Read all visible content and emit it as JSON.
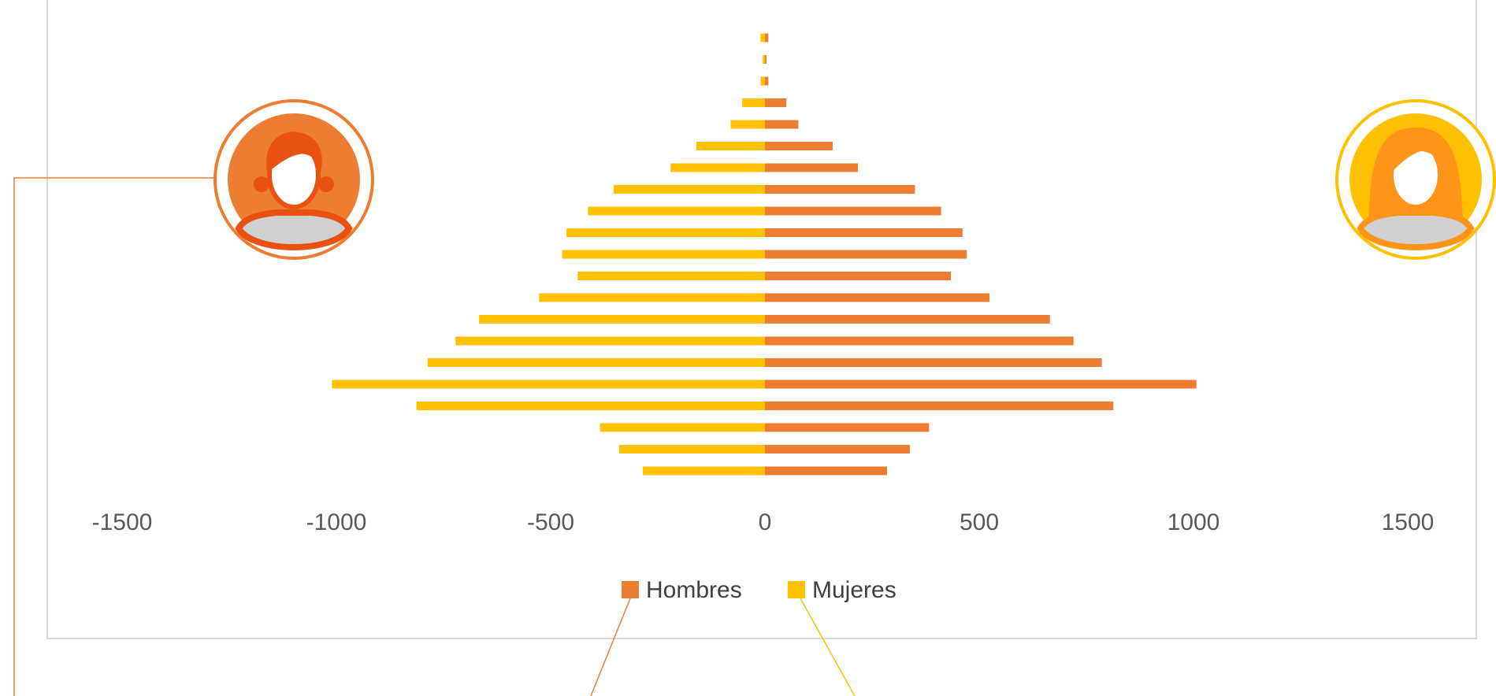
{
  "chart_data": {
    "type": "bar",
    "orientation": "horizontal",
    "subtype": "population-pyramid",
    "title": "",
    "xlabel": "",
    "ylabel": "",
    "xlim": [
      -1500,
      1500
    ],
    "x_ticks": [
      "-1500",
      "-1000",
      "-500",
      "0",
      "500",
      "1000",
      "1500"
    ],
    "x_tick_values": [
      -1500,
      -1000,
      -500,
      0,
      500,
      1000,
      1500
    ],
    "grid": false,
    "legend_position": "bottom",
    "categories_count": 21,
    "series": [
      {
        "name": "Hombres",
        "color": "#ED7D31",
        "values": [
          285,
          338,
          383,
          813,
          1007,
          786,
          720,
          665,
          524,
          434,
          471,
          461,
          411,
          350,
          217,
          158,
          78,
          50,
          8,
          3,
          8
        ]
      },
      {
        "name": "Mujeres",
        "color": "#FFC000",
        "values": [
          -285,
          -340,
          -385,
          -813,
          -1010,
          -787,
          -722,
          -667,
          -527,
          -437,
          -473,
          -463,
          -413,
          -353,
          -220,
          -160,
          -80,
          -53,
          -10,
          -5,
          -10
        ]
      }
    ]
  },
  "icons": {
    "male": "male-avatar-icon",
    "female": "female-avatar-icon"
  },
  "colors": {
    "male_accent": "#ED7D31",
    "female_accent": "#FFC000",
    "axis": "#D9D9D9"
  }
}
